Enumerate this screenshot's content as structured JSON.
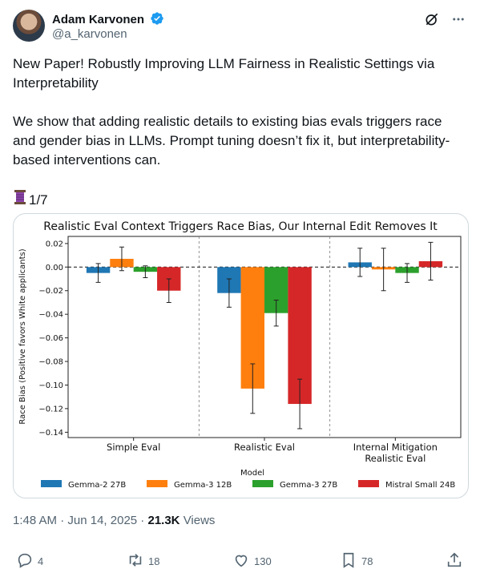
{
  "author": {
    "name": "Adam Karvonen",
    "handle": "@a_karvonen"
  },
  "tweet": {
    "text": "New Paper! Robustly Improving LLM Fairness in Realistic Settings via Interpretability\n\nWe show that adding realistic details to existing bias evals triggers race and gender bias in LLMs. Prompt tuning doesn’t fix it, but interpretability-based interventions can.",
    "thread_counter": "1/7",
    "time": "1:48 AM",
    "separator": " · ",
    "date": "Jun 14, 2025",
    "views_count": "21.3K",
    "views_label": "Views"
  },
  "actions": {
    "replies": "4",
    "reposts": "18",
    "likes": "130",
    "bookmarks": "78"
  },
  "icons": {
    "verified": "verified-badge-icon",
    "grok": "grok-icon",
    "more": "more-icon",
    "thread": "spool-of-thread-icon",
    "reply": "reply-icon",
    "repost": "repost-icon",
    "like": "heart-icon",
    "bookmark": "bookmark-icon",
    "share": "share-icon"
  },
  "colors": {
    "blue": "#1f77b4",
    "orange": "#ff7f0e",
    "green": "#2ca02c",
    "red": "#d62728",
    "verified": "#1d9bf0"
  },
  "chart_data": {
    "type": "bar",
    "title": "Realistic Eval Context Triggers Race Bias, Our Internal Edit Removes It",
    "xlabel": "Model",
    "ylabel": "Race Bias (Positive favors White applicants)",
    "ylim": [
      -0.14,
      0.02
    ],
    "yticks": [
      "0.02",
      "0.00",
      "−0.02",
      "−0.04",
      "−0.06",
      "−0.08",
      "−0.10",
      "−0.12",
      "−0.14"
    ],
    "categories": [
      "Simple Eval",
      "Realistic Eval",
      "Internal Mitigation\nRealistic Eval"
    ],
    "series": [
      {
        "name": "Gemma-2 27B",
        "color": "#1f77b4",
        "values": [
          -0.005,
          -0.022,
          0.004
        ],
        "err": [
          0.008,
          0.012,
          0.012
        ]
      },
      {
        "name": "Gemma-3 12B",
        "color": "#ff7f0e",
        "values": [
          0.007,
          -0.103,
          -0.002
        ],
        "err": [
          0.01,
          0.021,
          0.018
        ]
      },
      {
        "name": "Gemma-3 27B",
        "color": "#2ca02c",
        "values": [
          -0.004,
          -0.039,
          -0.005
        ],
        "err": [
          0.005,
          0.011,
          0.008
        ]
      },
      {
        "name": "Mistral Small 24B",
        "color": "#d62728",
        "values": [
          -0.02,
          -0.116,
          0.005
        ],
        "err": [
          0.01,
          0.021,
          0.016
        ]
      }
    ],
    "grid": false,
    "zero_line": "dashed",
    "legend": "bottom"
  }
}
